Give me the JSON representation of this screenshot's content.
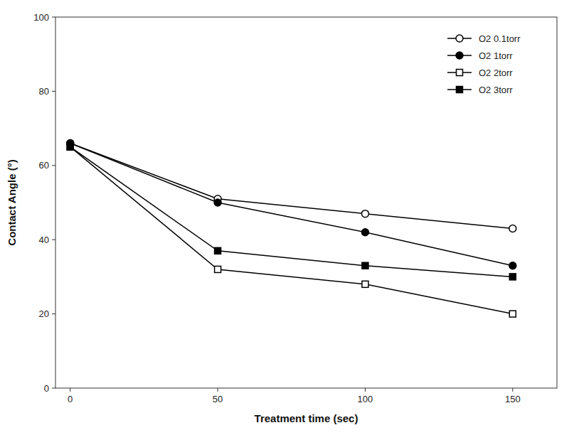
{
  "chart_data": {
    "type": "line",
    "xlabel": "Treatment time (sec)",
    "ylabel": "Contact Angle (°)",
    "x": [
      0,
      50,
      100,
      150
    ],
    "xlim": [
      -5,
      165
    ],
    "ylim": [
      0,
      100
    ],
    "xticks": [
      0,
      50,
      100,
      150
    ],
    "yticks": [
      0,
      20,
      40,
      60,
      80,
      100
    ],
    "grid": false,
    "legend": "upper right",
    "series": [
      {
        "name": "O2 0.1torr",
        "color": "black",
        "marker": "circle-open",
        "values": [
          66,
          51,
          47,
          43
        ]
      },
      {
        "name": "O2 1torr",
        "color": "black",
        "marker": "circle",
        "values": [
          66,
          50,
          42,
          33
        ]
      },
      {
        "name": "O2 2torr",
        "color": "black",
        "marker": "square-open",
        "values": [
          65,
          32,
          28,
          20
        ]
      },
      {
        "name": "O2 3torr",
        "color": "black",
        "marker": "square",
        "values": [
          65,
          37,
          33,
          30
        ]
      }
    ]
  }
}
